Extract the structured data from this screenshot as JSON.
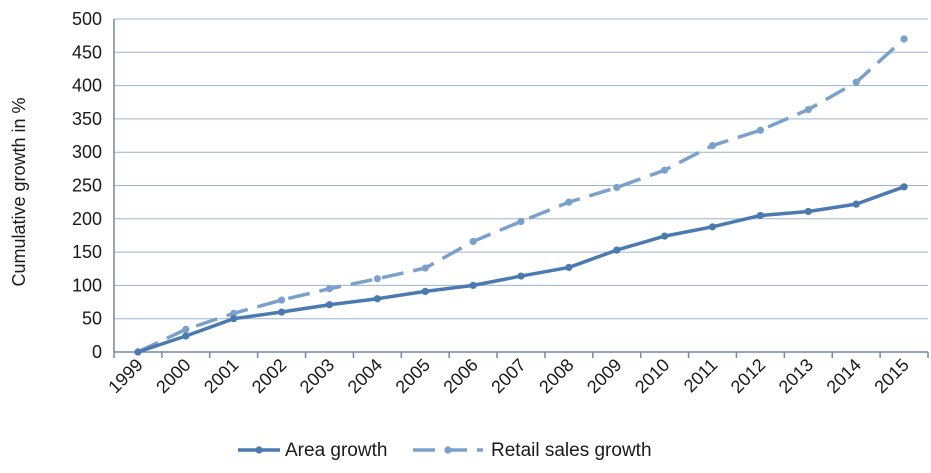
{
  "chart_data": {
    "type": "line",
    "ylabel": "Cumulative growth in %",
    "xlabel": "",
    "title": "",
    "ylim": [
      0,
      500
    ],
    "yticks": [
      0,
      50,
      100,
      150,
      200,
      250,
      300,
      350,
      400,
      450,
      500
    ],
    "categories": [
      "1999",
      "2000",
      "2001",
      "2002",
      "2003",
      "2004",
      "2005",
      "2006",
      "2007",
      "2008",
      "2009",
      "2010",
      "2011",
      "2012",
      "2013",
      "2014",
      "2015"
    ],
    "grid": true,
    "legend_position": "bottom",
    "series": [
      {
        "name": "Area growth",
        "color": "#4a7ab0",
        "style": "solid",
        "values": [
          0,
          24,
          50,
          60,
          71,
          80,
          91,
          100,
          114,
          127,
          153,
          174,
          188,
          205,
          211,
          222,
          248
        ]
      },
      {
        "name": "Retail sales growth",
        "color": "#7aa0cc",
        "style": "dashed",
        "values": [
          0,
          34,
          58,
          78,
          95,
          110,
          126,
          166,
          196,
          225,
          247,
          273,
          310,
          333,
          364,
          405,
          470
        ]
      }
    ]
  }
}
